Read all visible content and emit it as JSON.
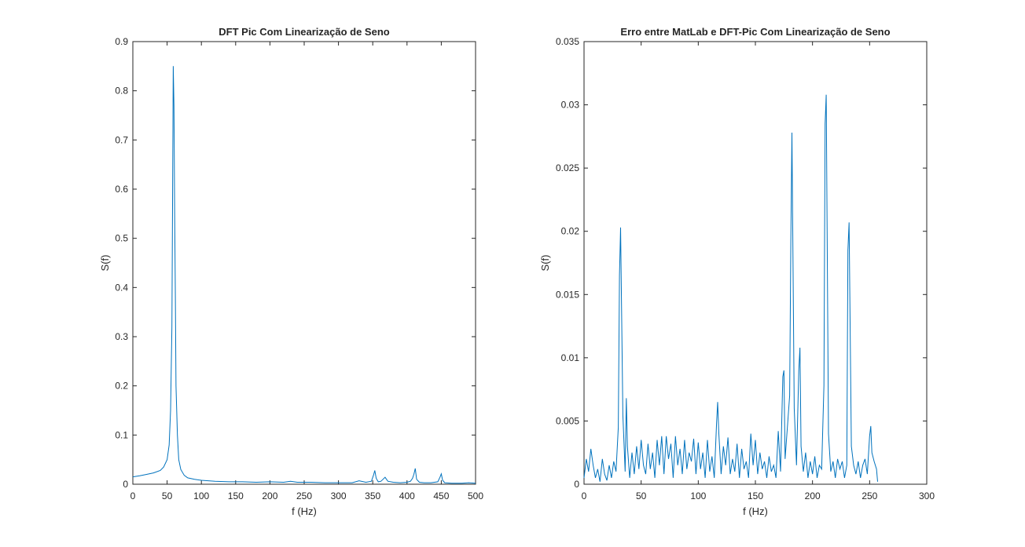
{
  "colors": {
    "line": "#0072BD",
    "axis": "#262626",
    "background": "#ffffff"
  },
  "chart_data": [
    {
      "type": "line",
      "title": "DFT Pic Com Linearização de Seno",
      "xlabel": "f (Hz)",
      "ylabel": "S(f)",
      "xlim": [
        0,
        500
      ],
      "ylim": [
        0,
        0.9
      ],
      "xticks": [
        0,
        50,
        100,
        150,
        200,
        250,
        300,
        350,
        400,
        450,
        500
      ],
      "yticks": [
        0,
        0.1,
        0.2,
        0.3,
        0.4,
        0.5,
        0.6,
        0.7,
        0.8,
        0.9
      ],
      "grid": false,
      "series": [
        {
          "x": [
            0,
            10,
            20,
            30,
            40,
            45,
            50,
            53,
            55,
            57,
            58,
            59,
            60,
            61,
            62,
            63,
            65,
            67,
            70,
            75,
            80,
            90,
            100,
            110,
            120,
            140,
            160,
            180,
            200,
            220,
            230,
            240,
            260,
            280,
            300,
            320,
            330,
            340,
            348,
            351,
            353,
            355,
            358,
            362,
            365,
            368,
            372,
            380,
            390,
            400,
            405,
            408,
            410,
            412,
            414,
            418,
            425,
            435,
            445,
            448,
            450,
            452,
            455,
            465,
            480,
            490,
            500
          ],
          "values": [
            0.015,
            0.017,
            0.02,
            0.023,
            0.028,
            0.035,
            0.05,
            0.08,
            0.15,
            0.32,
            0.6,
            0.85,
            0.77,
            0.55,
            0.38,
            0.2,
            0.1,
            0.05,
            0.03,
            0.018,
            0.013,
            0.01,
            0.008,
            0.007,
            0.006,
            0.005,
            0.005,
            0.004,
            0.005,
            0.004,
            0.006,
            0.004,
            0.004,
            0.003,
            0.003,
            0.003,
            0.007,
            0.004,
            0.006,
            0.018,
            0.028,
            0.012,
            0.005,
            0.006,
            0.01,
            0.014,
            0.006,
            0.004,
            0.003,
            0.004,
            0.006,
            0.012,
            0.02,
            0.032,
            0.01,
            0.004,
            0.003,
            0.003,
            0.005,
            0.014,
            0.021,
            0.008,
            0.003,
            0.002,
            0.002,
            0.003,
            0.002
          ]
        }
      ]
    },
    {
      "type": "line",
      "title": "Erro entre MatLab e DFT-Pic Com Linearização de Seno",
      "xlabel": "f (Hz)",
      "ylabel": "S(f)",
      "xlim": [
        0,
        300
      ],
      "ylim": [
        0,
        0.035
      ],
      "xticks": [
        0,
        50,
        100,
        150,
        200,
        250,
        300
      ],
      "yticks": [
        0,
        0.005,
        0.01,
        0.015,
        0.02,
        0.025,
        0.03,
        0.035
      ],
      "grid": false,
      "series": [
        {
          "x": [
            0,
            2,
            4,
            6,
            8,
            10,
            12,
            14,
            16,
            18,
            20,
            22,
            24,
            26,
            28,
            30,
            31,
            32,
            34,
            36,
            37,
            38,
            40,
            42,
            44,
            46,
            48,
            50,
            52,
            54,
            56,
            58,
            60,
            62,
            64,
            66,
            68,
            70,
            72,
            74,
            76,
            78,
            80,
            82,
            84,
            86,
            88,
            90,
            92,
            94,
            96,
            98,
            100,
            102,
            104,
            106,
            108,
            110,
            112,
            114,
            116,
            117,
            118,
            120,
            122,
            124,
            126,
            128,
            130,
            132,
            134,
            136,
            138,
            140,
            142,
            144,
            146,
            148,
            150,
            152,
            154,
            156,
            158,
            160,
            162,
            164,
            166,
            168,
            170,
            172,
            174,
            175,
            176,
            178,
            180,
            181,
            182,
            184,
            186,
            188,
            189,
            190,
            192,
            194,
            196,
            198,
            200,
            202,
            204,
            206,
            208,
            210,
            211,
            212,
            214,
            216,
            218,
            220,
            222,
            224,
            226,
            228,
            230,
            231,
            232,
            234,
            236,
            238,
            240,
            242,
            244,
            246,
            248,
            250,
            251,
            252,
            254,
            256,
            257
          ],
          "values": [
            0.0005,
            0.002,
            0.001,
            0.0028,
            0.0015,
            0.0005,
            0.0012,
            0.0002,
            0.002,
            0.0008,
            0.0003,
            0.0015,
            0.0005,
            0.0018,
            0.001,
            0.0045,
            0.0165,
            0.0203,
            0.0055,
            0.001,
            0.0068,
            0.003,
            0.0005,
            0.0025,
            0.0008,
            0.003,
            0.0012,
            0.0035,
            0.0015,
            0.0008,
            0.0032,
            0.0012,
            0.0025,
            0.0005,
            0.0035,
            0.0015,
            0.0038,
            0.0008,
            0.0038,
            0.002,
            0.0032,
            0.0005,
            0.0038,
            0.0015,
            0.0028,
            0.0008,
            0.0035,
            0.0012,
            0.0025,
            0.0018,
            0.0036,
            0.0008,
            0.0033,
            0.0012,
            0.0025,
            0.0005,
            0.0035,
            0.001,
            0.0022,
            0.0005,
            0.0048,
            0.0065,
            0.004,
            0.0008,
            0.003,
            0.0015,
            0.0037,
            0.0008,
            0.002,
            0.001,
            0.0032,
            0.0005,
            0.0028,
            0.0012,
            0.0018,
            0.0005,
            0.004,
            0.0015,
            0.0035,
            0.0008,
            0.0025,
            0.0012,
            0.0018,
            0.0005,
            0.0022,
            0.001,
            0.0015,
            0.0005,
            0.0042,
            0.001,
            0.0085,
            0.009,
            0.002,
            0.0045,
            0.007,
            0.0192,
            0.0278,
            0.006,
            0.0015,
            0.009,
            0.0108,
            0.003,
            0.001,
            0.0025,
            0.0005,
            0.0018,
            0.0008,
            0.0022,
            0.0005,
            0.0015,
            0.0012,
            0.0078,
            0.0285,
            0.0308,
            0.004,
            0.001,
            0.0018,
            0.0005,
            0.002,
            0.0012,
            0.0018,
            0.0005,
            0.0015,
            0.0185,
            0.0207,
            0.003,
            0.0015,
            0.0008,
            0.0018,
            0.0005,
            0.0015,
            0.002,
            0.0008,
            0.0038,
            0.0046,
            0.0025,
            0.0018,
            0.0012,
            0.0002
          ]
        }
      ]
    }
  ]
}
